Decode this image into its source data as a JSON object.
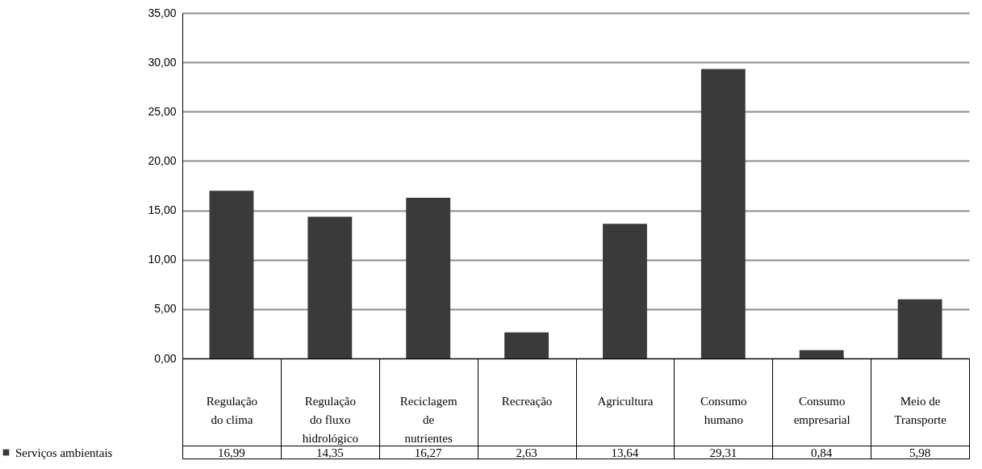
{
  "chart_data": {
    "type": "bar",
    "categories": [
      "Regulação do clima",
      "Regulação do fluxo hidrológico",
      "Reciclagem de nutrientes",
      "Recreação",
      "Agricultura",
      "Consumo humano",
      "Consumo empresarial",
      "Meio de Transporte"
    ],
    "series": [
      {
        "name": "Serviços ambientais",
        "color": "#3a3a3a",
        "values": [
          16.99,
          14.35,
          16.27,
          2.63,
          13.64,
          29.31,
          0.84,
          5.98
        ],
        "value_labels": [
          "16,99",
          "14,35",
          "16,27",
          "2,63",
          "13,64",
          "29,31",
          "0,84",
          "5,98"
        ]
      }
    ],
    "ylim": [
      0,
      35
    ],
    "yticks": [
      {
        "value": 0,
        "label": "0,00"
      },
      {
        "value": 5,
        "label": "5,00"
      },
      {
        "value": 10,
        "label": "10,00"
      },
      {
        "value": 15,
        "label": "15,00"
      },
      {
        "value": 20,
        "label": "20,00"
      },
      {
        "value": 25,
        "label": "25,00"
      },
      {
        "value": 30,
        "label": "30,00"
      },
      {
        "value": 35,
        "label": "35,00"
      }
    ],
    "grid": "y",
    "legend": "bottom left"
  }
}
